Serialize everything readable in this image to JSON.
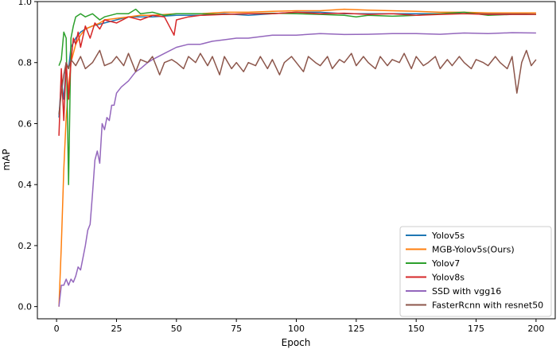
{
  "chart_data": {
    "type": "line",
    "title": "",
    "xlabel": "Epoch",
    "ylabel": "mAP",
    "xlim": [
      -8,
      208
    ],
    "ylim": [
      -0.04,
      1.0
    ],
    "xticks": [
      0,
      25,
      50,
      75,
      100,
      125,
      150,
      175,
      200
    ],
    "yticks": [
      0.0,
      0.2,
      0.4,
      0.6,
      0.8,
      1.0
    ],
    "xtick_labels": [
      "0",
      "25",
      "50",
      "75",
      "100",
      "125",
      "150",
      "175",
      "200"
    ],
    "ytick_labels": [
      "0.0",
      "0.2",
      "0.4",
      "0.6",
      "0.8",
      "1.0"
    ],
    "grid": false,
    "legend_position": "lower-right",
    "series": [
      {
        "name": "Yolov5s",
        "color": "#1f77b4",
        "x": [
          1,
          2,
          3,
          4,
          5,
          6,
          8,
          10,
          12,
          15,
          20,
          25,
          30,
          40,
          50,
          60,
          70,
          80,
          90,
          100,
          110,
          120,
          130,
          140,
          150,
          160,
          170,
          180,
          190,
          200
        ],
        "y": [
          0.62,
          0.74,
          0.68,
          0.8,
          0.78,
          0.85,
          0.88,
          0.9,
          0.91,
          0.92,
          0.93,
          0.94,
          0.95,
          0.95,
          0.955,
          0.955,
          0.96,
          0.955,
          0.96,
          0.965,
          0.965,
          0.96,
          0.96,
          0.96,
          0.96,
          0.96,
          0.96,
          0.96,
          0.96,
          0.958
        ]
      },
      {
        "name": "MGB-Yolov5s(Ours)",
        "color": "#ff7f0e",
        "x": [
          1,
          2,
          3,
          4,
          5,
          6,
          8,
          10,
          12,
          15,
          18,
          20,
          25,
          30,
          35,
          40,
          50,
          60,
          70,
          80,
          90,
          100,
          110,
          120,
          130,
          140,
          150,
          160,
          170,
          180,
          190,
          200
        ],
        "y": [
          0.0,
          0.2,
          0.45,
          0.62,
          0.72,
          0.8,
          0.86,
          0.89,
          0.91,
          0.92,
          0.93,
          0.94,
          0.945,
          0.95,
          0.955,
          0.955,
          0.96,
          0.96,
          0.965,
          0.965,
          0.968,
          0.97,
          0.97,
          0.975,
          0.972,
          0.97,
          0.968,
          0.965,
          0.965,
          0.963,
          0.963,
          0.963
        ]
      },
      {
        "name": "Yolov7",
        "color": "#2ca02c",
        "x": [
          1,
          2,
          3,
          4,
          5,
          6,
          7,
          8,
          10,
          12,
          15,
          18,
          20,
          25,
          30,
          33,
          35,
          40,
          45,
          50,
          55,
          60,
          70,
          80,
          90,
          100,
          110,
          120,
          125,
          130,
          140,
          150,
          160,
          170,
          175,
          180,
          190,
          200
        ],
        "y": [
          0.79,
          0.81,
          0.9,
          0.88,
          0.4,
          0.88,
          0.92,
          0.95,
          0.96,
          0.95,
          0.96,
          0.94,
          0.95,
          0.96,
          0.96,
          0.975,
          0.96,
          0.965,
          0.955,
          0.96,
          0.96,
          0.96,
          0.958,
          0.96,
          0.962,
          0.96,
          0.958,
          0.955,
          0.95,
          0.955,
          0.952,
          0.955,
          0.96,
          0.965,
          0.96,
          0.955,
          0.958,
          0.958
        ]
      },
      {
        "name": "Yolov8s",
        "color": "#d62728",
        "x": [
          1,
          2,
          3,
          4,
          5,
          6,
          7,
          8,
          9,
          10,
          12,
          14,
          16,
          18,
          20,
          25,
          30,
          35,
          40,
          45,
          49,
          50,
          55,
          60,
          70,
          80,
          90,
          100,
          110,
          120,
          130,
          140,
          150,
          160,
          170,
          180,
          190,
          200
        ],
        "y": [
          0.56,
          0.78,
          0.61,
          0.8,
          0.68,
          0.8,
          0.88,
          0.86,
          0.9,
          0.85,
          0.92,
          0.88,
          0.93,
          0.91,
          0.94,
          0.93,
          0.95,
          0.94,
          0.955,
          0.95,
          0.89,
          0.94,
          0.95,
          0.955,
          0.958,
          0.96,
          0.96,
          0.965,
          0.96,
          0.962,
          0.958,
          0.96,
          0.955,
          0.958,
          0.96,
          0.958,
          0.958,
          0.958
        ]
      },
      {
        "name": "SSD with vgg16",
        "color": "#9467bd",
        "x": [
          1,
          2,
          3,
          4,
          5,
          6,
          7,
          8,
          9,
          10,
          11,
          12,
          13,
          14,
          15,
          16,
          17,
          18,
          19,
          20,
          21,
          22,
          23,
          24,
          25,
          27,
          30,
          33,
          35,
          38,
          40,
          45,
          50,
          55,
          60,
          65,
          70,
          75,
          80,
          85,
          90,
          100,
          110,
          120,
          130,
          140,
          150,
          160,
          170,
          180,
          190,
          200
        ],
        "y": [
          0.0,
          0.07,
          0.07,
          0.09,
          0.07,
          0.09,
          0.08,
          0.1,
          0.13,
          0.12,
          0.16,
          0.2,
          0.25,
          0.27,
          0.37,
          0.48,
          0.51,
          0.47,
          0.6,
          0.58,
          0.62,
          0.61,
          0.66,
          0.66,
          0.7,
          0.72,
          0.74,
          0.77,
          0.78,
          0.8,
          0.81,
          0.83,
          0.85,
          0.86,
          0.86,
          0.87,
          0.875,
          0.88,
          0.88,
          0.885,
          0.89,
          0.89,
          0.895,
          0.892,
          0.893,
          0.895,
          0.895,
          0.893,
          0.897,
          0.895,
          0.898,
          0.897
        ]
      },
      {
        "name": "FasterRcnn with resnet50",
        "color": "#8c564b",
        "x": [
          1,
          2,
          3,
          4,
          5,
          6,
          8,
          10,
          12,
          15,
          18,
          20,
          23,
          25,
          28,
          30,
          33,
          35,
          38,
          40,
          43,
          45,
          48,
          50,
          53,
          55,
          58,
          60,
          63,
          65,
          68,
          70,
          73,
          75,
          78,
          80,
          83,
          85,
          88,
          90,
          93,
          95,
          98,
          100,
          103,
          105,
          108,
          110,
          113,
          115,
          118,
          120,
          123,
          125,
          128,
          130,
          133,
          135,
          138,
          140,
          143,
          145,
          148,
          150,
          153,
          155,
          158,
          160,
          163,
          165,
          168,
          170,
          173,
          175,
          178,
          180,
          183,
          185,
          188,
          190,
          192,
          194,
          196,
          198,
          200
        ],
        "y": [
          0.63,
          0.7,
          0.76,
          0.8,
          0.78,
          0.81,
          0.79,
          0.82,
          0.78,
          0.8,
          0.84,
          0.79,
          0.8,
          0.82,
          0.79,
          0.83,
          0.77,
          0.81,
          0.8,
          0.82,
          0.76,
          0.8,
          0.81,
          0.8,
          0.78,
          0.82,
          0.8,
          0.83,
          0.79,
          0.82,
          0.76,
          0.82,
          0.78,
          0.8,
          0.77,
          0.8,
          0.79,
          0.82,
          0.78,
          0.81,
          0.76,
          0.8,
          0.82,
          0.8,
          0.77,
          0.82,
          0.8,
          0.79,
          0.82,
          0.78,
          0.81,
          0.8,
          0.83,
          0.79,
          0.82,
          0.8,
          0.78,
          0.82,
          0.79,
          0.81,
          0.8,
          0.83,
          0.78,
          0.82,
          0.79,
          0.8,
          0.82,
          0.78,
          0.81,
          0.79,
          0.82,
          0.8,
          0.78,
          0.81,
          0.8,
          0.79,
          0.82,
          0.8,
          0.78,
          0.82,
          0.7,
          0.8,
          0.84,
          0.79,
          0.81
        ]
      }
    ]
  }
}
